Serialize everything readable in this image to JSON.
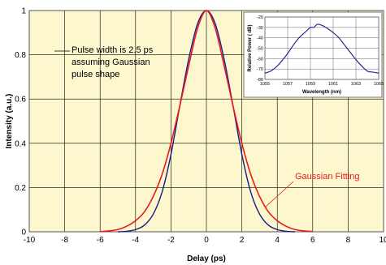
{
  "chart_data": [
    {
      "type": "line",
      "xlabel": "Delay (ps)",
      "ylabel": "Intensity (a.u.)",
      "xlim": [
        -10,
        10
      ],
      "ylim": [
        0,
        1
      ],
      "xticks": [
        -10,
        -8,
        -6,
        -4,
        -2,
        0,
        2,
        4,
        6,
        8,
        10
      ],
      "yticks": [
        0,
        0.2,
        0.4,
        0.6,
        0.8,
        1
      ],
      "grid": true,
      "background": "#fcf7cc",
      "annotation": {
        "lines": [
          "Pulse width is 2.5 ps",
          "assuming Gaussian",
          "pulse shape"
        ]
      },
      "series": [
        {
          "name": "",
          "color": "#1a1a8c",
          "x": [
            -5,
            -4.5,
            -4,
            -3.5,
            -3,
            -2.5,
            -2,
            -1.5,
            -1,
            -0.5,
            0,
            0.5,
            1,
            1.5,
            2,
            2.5,
            3,
            3.5,
            4,
            4.5,
            5
          ],
          "y": [
            0.0,
            0.002,
            0.01,
            0.03,
            0.08,
            0.18,
            0.35,
            0.57,
            0.78,
            0.94,
            1.0,
            0.94,
            0.78,
            0.57,
            0.35,
            0.18,
            0.08,
            0.03,
            0.01,
            0.002,
            0.0
          ]
        },
        {
          "name": "Gaussian Fitting",
          "color": "#e81a1a",
          "x": [
            -6,
            -5.5,
            -5,
            -4.5,
            -4,
            -3.5,
            -3,
            -2.5,
            -2,
            -1.5,
            -1,
            -0.5,
            0,
            0.5,
            1,
            1.5,
            2,
            2.5,
            3,
            3.5,
            4,
            4.5,
            5,
            5.5,
            6
          ],
          "y": [
            0.001,
            0.004,
            0.01,
            0.025,
            0.05,
            0.09,
            0.16,
            0.26,
            0.4,
            0.57,
            0.75,
            0.92,
            1.0,
            0.92,
            0.75,
            0.57,
            0.4,
            0.26,
            0.16,
            0.09,
            0.05,
            0.025,
            0.01,
            0.004,
            0.001
          ]
        }
      ]
    },
    {
      "type": "line",
      "xlabel": "Wavelength (nm)",
      "ylabel": "Relative Power ( dB)",
      "xlim": [
        1055,
        1065
      ],
      "ylim": [
        -80,
        -20
      ],
      "xticks": [
        1055,
        1057,
        1059,
        1061,
        1063,
        1065
      ],
      "yticks": [
        -20,
        -30,
        -40,
        -50,
        -60,
        -70,
        -80
      ],
      "grid": true,
      "background": "#ffffff",
      "series": [
        {
          "name": "",
          "color": "#1a1a8c",
          "x": [
            1055,
            1055.5,
            1056,
            1056.5,
            1057,
            1057.5,
            1058,
            1058.5,
            1059,
            1059.3,
            1059.6,
            1060,
            1060.5,
            1061,
            1061.5,
            1062,
            1062.5,
            1063,
            1063.5,
            1064,
            1064.5,
            1065
          ],
          "y": [
            -74,
            -72,
            -68,
            -62,
            -55,
            -47,
            -40,
            -35,
            -30,
            -30,
            -27,
            -28,
            -31,
            -35,
            -40,
            -47,
            -54,
            -61,
            -67,
            -72,
            -73,
            -74
          ]
        }
      ]
    }
  ]
}
